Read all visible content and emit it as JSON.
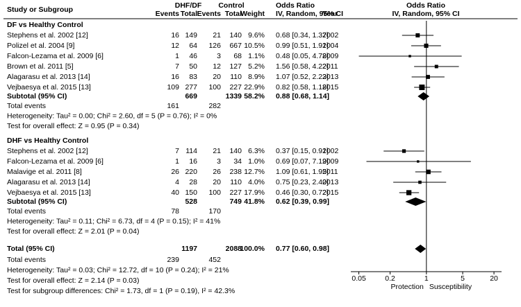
{
  "chart_data": {
    "type": "forest",
    "headers": {
      "study": "Study or Subgroup",
      "group1": "DHF/DF",
      "group2": "Control",
      "effect": "Odds Ratio",
      "plot_title": "Odds Ratio",
      "plot_method": "IV, Random, 95% CI",
      "columns": [
        "Events",
        "Total",
        "Events",
        "Total",
        "Weight",
        "IV, Random, 95% CI",
        "Year"
      ]
    },
    "groups": [
      {
        "title": "DF vs Healthy Control",
        "studies": [
          {
            "name": "Stephens et al. 2002 [12]",
            "events1": 16,
            "total1": 149,
            "events2": 21,
            "total2": 140,
            "weight": 9.6,
            "weight_label": "9.6%",
            "or": 0.68,
            "lo": 0.34,
            "hi": 1.37,
            "or_label": "0.68 [0.34, 1.37]",
            "year": 2002
          },
          {
            "name": "Polizel et al. 2004 [9]",
            "events1": 12,
            "total1": 64,
            "events2": 126,
            "total2": 667,
            "weight": 10.5,
            "weight_label": "10.5%",
            "or": 0.99,
            "lo": 0.51,
            "hi": 1.91,
            "or_label": "0.99 [0.51, 1.91]",
            "year": 2004
          },
          {
            "name": "Falcon-Lezama et al. 2009 [6]",
            "events1": 1,
            "total1": 46,
            "events2": 3,
            "total2": 68,
            "weight": 1.1,
            "weight_label": "1.1%",
            "or": 0.48,
            "lo": 0.05,
            "hi": 4.78,
            "or_label": "0.48 [0.05, 4.78]",
            "year": 2009
          },
          {
            "name": "Brown et al. 2011 [5]",
            "events1": 7,
            "total1": 50,
            "events2": 12,
            "total2": 127,
            "weight": 5.2,
            "weight_label": "5.2%",
            "or": 1.56,
            "lo": 0.58,
            "hi": 4.22,
            "or_label": "1.56 [0.58, 4.22]",
            "year": 2011
          },
          {
            "name": "Alagarasu et al. 2013 [14]",
            "events1": 16,
            "total1": 83,
            "events2": 20,
            "total2": 110,
            "weight": 8.9,
            "weight_label": "8.9%",
            "or": 1.07,
            "lo": 0.52,
            "hi": 2.23,
            "or_label": "1.07 [0.52, 2.23]",
            "year": 2013
          },
          {
            "name": "Vejbaesya et al. 2015 [13]",
            "events1": 109,
            "total1": 277,
            "events2": 100,
            "total2": 227,
            "weight": 22.9,
            "weight_label": "22.9%",
            "or": 0.82,
            "lo": 0.58,
            "hi": 1.18,
            "or_label": "0.82 [0.58, 1.18]",
            "year": 2015
          }
        ],
        "subtotal": {
          "label": "Subtotal (95% CI)",
          "total1": 669,
          "total2": 1339,
          "weight": 58.2,
          "weight_label": "58.2%",
          "or": 0.88,
          "lo": 0.68,
          "hi": 1.14,
          "or_label": "0.88 [0.68, 1.14]"
        },
        "total_events": {
          "label": "Total events",
          "events1": 161,
          "events2": 282
        },
        "heterogeneity": "Heterogeneity: Tau² = 0.00; Chi² = 2.60, df = 5 (P = 0.76); I² = 0%",
        "effect_test": "Test for overall effect: Z = 0.95 (P = 0.34)"
      },
      {
        "title": "DHF vs Healthy Control",
        "studies": [
          {
            "name": "Stephens et al. 2002 [12]",
            "events1": 7,
            "total1": 114,
            "events2": 21,
            "total2": 140,
            "weight": 6.3,
            "weight_label": "6.3%",
            "or": 0.37,
            "lo": 0.15,
            "hi": 0.91,
            "or_label": "0.37 [0.15, 0.91]",
            "year": 2002
          },
          {
            "name": "Falcon-Lezama et al. 2009 [6]",
            "events1": 1,
            "total1": 16,
            "events2": 3,
            "total2": 34,
            "weight": 1.0,
            "weight_label": "1.0%",
            "or": 0.69,
            "lo": 0.07,
            "hi": 7.19,
            "or_label": "0.69 [0.07, 7.19]",
            "year": 2009
          },
          {
            "name": "Malavige et al. 2011 [8]",
            "events1": 26,
            "total1": 220,
            "events2": 26,
            "total2": 238,
            "weight": 12.7,
            "weight_label": "12.7%",
            "or": 1.09,
            "lo": 0.61,
            "hi": 1.95,
            "or_label": "1.09 [0.61, 1.95]",
            "year": 2011
          },
          {
            "name": "Alagarasu et al. 2013 [14]",
            "events1": 4,
            "total1": 28,
            "events2": 20,
            "total2": 110,
            "weight": 4.0,
            "weight_label": "4.0%",
            "or": 0.75,
            "lo": 0.23,
            "hi": 2.4,
            "or_label": "0.75 [0.23, 2.40]",
            "year": 2013
          },
          {
            "name": "Vejbaesya et al. 2015 [13]",
            "events1": 40,
            "total1": 150,
            "events2": 100,
            "total2": 227,
            "weight": 17.9,
            "weight_label": "17.9%",
            "or": 0.46,
            "lo": 0.3,
            "hi": 0.72,
            "or_label": "0.46 [0.30, 0.72]",
            "year": 2015
          }
        ],
        "subtotal": {
          "label": "Subtotal (95% CI)",
          "total1": 528,
          "total2": 749,
          "weight": 41.8,
          "weight_label": "41.8%",
          "or": 0.62,
          "lo": 0.39,
          "hi": 0.99,
          "or_label": "0.62 [0.39, 0.99]"
        },
        "total_events": {
          "label": "Total events",
          "events1": 78,
          "events2": 170
        },
        "heterogeneity": "Heterogeneity: Tau² = 0.11; Chi² = 6.73, df = 4 (P = 0.15); I² = 41%",
        "effect_test": "Test for overall effect: Z = 2.01 (P = 0.04)"
      }
    ],
    "overall": {
      "label": "Total (95% CI)",
      "total1": 1197,
      "total2": 2088,
      "weight": 100.0,
      "weight_label": "100.0%",
      "or": 0.77,
      "lo": 0.6,
      "hi": 0.98,
      "or_label": "0.77 [0.60, 0.98]",
      "total_events": {
        "label": "Total events",
        "events1": 239,
        "events2": 452
      },
      "heterogeneity": "Heterogeneity: Tau² = 0.03; Chi² = 12.72, df = 10 (P = 0.24); I² = 21%",
      "effect_test": "Test for overall effect: Z = 2.14 (P = 0.03)",
      "subgroup_test": "Test for subgroup differences: Chi² = 1.73, df = 1 (P = 0.19), I² = 42.3%"
    },
    "log_scale": true,
    "xlim": [
      0.035,
      28
    ],
    "xticks": [
      0.05,
      0.2,
      1,
      5,
      20
    ],
    "axis_labels": [
      "Protection",
      "Susceptibility"
    ],
    "color": "#000000"
  }
}
